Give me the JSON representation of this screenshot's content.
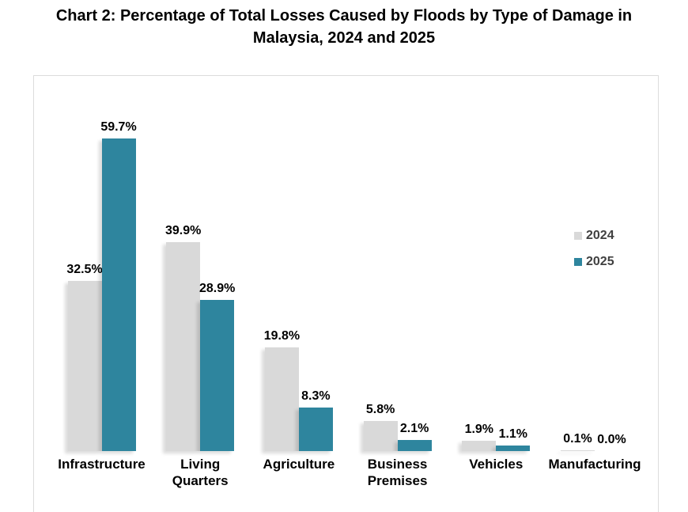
{
  "title": {
    "line1": "Chart 2: Percentage of Total Losses Caused by Floods by Type of Damage in",
    "line2": "Malaysia, 2024 and 2025"
  },
  "chart_data": {
    "type": "bar",
    "title": "Chart 2: Percentage of Total Losses Caused by Floods by Type of Damage in Malaysia, 2024 and 2025",
    "categories": [
      "Infrastructure",
      "Living Quarters",
      "Agriculture",
      "Business Premises",
      "Vehicles",
      "Manufacturing"
    ],
    "series": [
      {
        "name": "2024",
        "color": "#d9d9d9",
        "values": [
          32.5,
          39.9,
          19.8,
          5.8,
          1.9,
          0.1
        ],
        "labels": [
          "32.5%",
          "39.9%",
          "19.8%",
          "5.8%",
          "1.9%",
          "0.1%"
        ]
      },
      {
        "name": "2025",
        "color": "#2e859e",
        "values": [
          59.7,
          28.9,
          8.3,
          2.1,
          1.1,
          0.0
        ],
        "labels": [
          "59.7%",
          "28.9%",
          "8.3%",
          "2.1%",
          "1.1%",
          "0.0%"
        ]
      }
    ],
    "value_suffix": "%",
    "ylim": [
      0,
      65
    ],
    "grid": false,
    "axis_lines": false,
    "legend_position": "right"
  }
}
